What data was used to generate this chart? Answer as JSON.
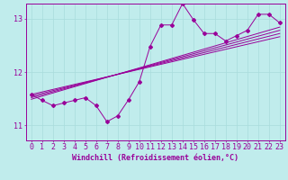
{
  "xlabel": "Windchill (Refroidissement éolien,°C)",
  "ylabel": "",
  "bg_color": "#c0ecec",
  "line_color": "#990099",
  "xlim": [
    -0.5,
    23.5
  ],
  "ylim": [
    10.72,
    13.28
  ],
  "xticks": [
    0,
    1,
    2,
    3,
    4,
    5,
    6,
    7,
    8,
    9,
    10,
    11,
    12,
    13,
    14,
    15,
    16,
    17,
    18,
    19,
    20,
    21,
    22,
    23
  ],
  "yticks": [
    11,
    12,
    13
  ],
  "data_x": [
    0,
    1,
    2,
    3,
    4,
    5,
    6,
    7,
    8,
    9,
    10,
    11,
    12,
    13,
    14,
    15,
    16,
    17,
    18,
    19,
    20,
    21,
    22,
    23
  ],
  "data_y": [
    11.58,
    11.47,
    11.37,
    11.42,
    11.47,
    11.52,
    11.37,
    11.07,
    11.18,
    11.48,
    11.82,
    12.48,
    12.88,
    12.88,
    13.28,
    12.98,
    12.72,
    12.72,
    12.58,
    12.68,
    12.78,
    13.08,
    13.08,
    12.92
  ],
  "trend_lines": [
    [
      11.55,
      12.72
    ],
    [
      11.52,
      12.78
    ],
    [
      11.49,
      12.84
    ],
    [
      11.58,
      12.66
    ]
  ],
  "grid_color": "#a8dcdc",
  "font_size": 6,
  "tick_label_size": 6
}
